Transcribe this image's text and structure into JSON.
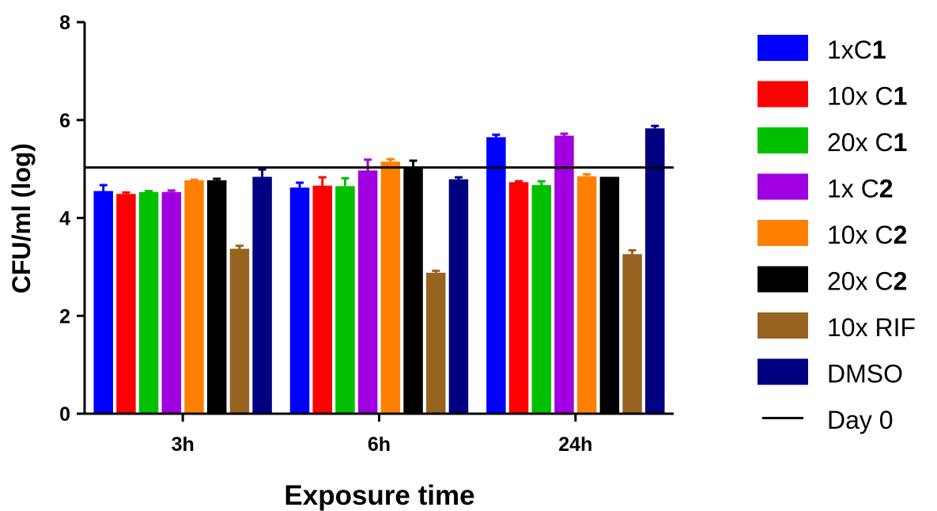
{
  "chart_data": {
    "type": "bar",
    "xlabel": "Exposure time",
    "ylabel": "CFU/ml (log)",
    "ylim": [
      0,
      8
    ],
    "yticks": [
      0,
      2,
      4,
      6,
      8
    ],
    "categories": [
      "3h",
      "6h",
      "24h"
    ],
    "legend_position": "right",
    "reference_line": {
      "name": "Day 0",
      "value": 5.03,
      "color": "#000000"
    },
    "series": [
      {
        "name": "1xC1",
        "label_normal": "1xC",
        "label_bold": "1",
        "color": "#0000FF",
        "values": [
          4.55,
          4.62,
          5.65
        ],
        "errors": [
          0.12,
          0.1,
          0.05
        ]
      },
      {
        "name": "10x C1",
        "label_normal": "10x C",
        "label_bold": "1",
        "color": "#FF0000",
        "values": [
          4.49,
          4.66,
          4.73
        ],
        "errors": [
          0.03,
          0.17,
          0.02
        ]
      },
      {
        "name": "20x C1",
        "label_normal": "20x C",
        "label_bold": "1",
        "color": "#00C000",
        "values": [
          4.53,
          4.65,
          4.67
        ],
        "errors": [
          0.02,
          0.16,
          0.08
        ]
      },
      {
        "name": "1x C2",
        "label_normal": "1x C",
        "label_bold": "2",
        "color": "#A000E0",
        "values": [
          4.53,
          4.97,
          5.68
        ],
        "errors": [
          0.03,
          0.22,
          0.04
        ]
      },
      {
        "name": "10x C2",
        "label_normal": "10x C",
        "label_bold": "2",
        "color": "#FF8000",
        "values": [
          4.77,
          5.15,
          4.85
        ],
        "errors": [
          0.01,
          0.05,
          0.04
        ]
      },
      {
        "name": "20x C2",
        "label_normal": "20x C",
        "label_bold": "2",
        "color": "#000000",
        "values": [
          4.77,
          5.05,
          4.84
        ],
        "errors": [
          0.03,
          0.12,
          0.0
        ]
      },
      {
        "name": "10x RIF",
        "label_normal": "10x RIF",
        "label_bold": "",
        "color": "#966420",
        "values": [
          3.37,
          2.88,
          3.26
        ],
        "errors": [
          0.06,
          0.04,
          0.08
        ]
      },
      {
        "name": "DMSO",
        "label_normal": "DMSO",
        "label_bold": "",
        "color": "#000080",
        "values": [
          4.84,
          4.79,
          5.83
        ],
        "errors": [
          0.15,
          0.04,
          0.05
        ]
      }
    ]
  }
}
